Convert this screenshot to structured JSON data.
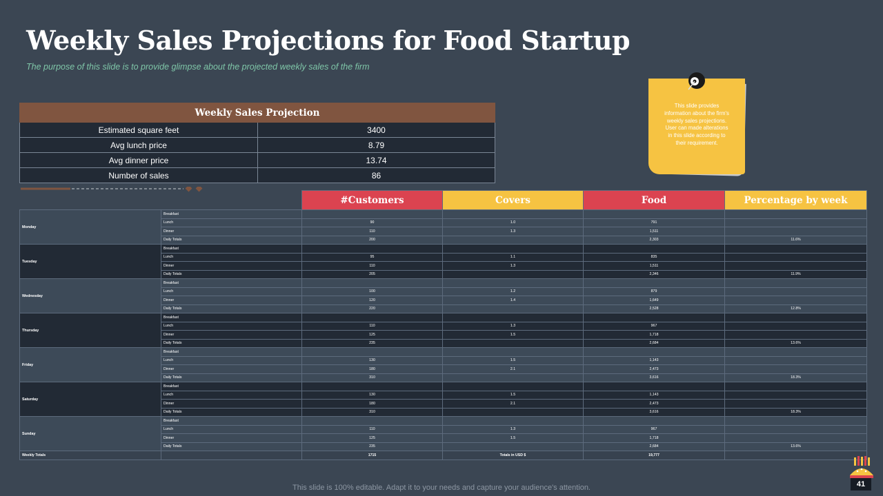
{
  "slide": {
    "title": "Weekly Sales Projections for Food Startup",
    "subtitle": "The purpose  of  this slide is to provide  glimpse  about  the projected  weekly  sales of the firm",
    "footer": "This slide is 100% editable. Adapt it to your needs and capture your audience's attention.",
    "page_number": "41"
  },
  "projection": {
    "header": "Weekly Sales Projection",
    "rows": [
      {
        "label": "Estimated square feet",
        "value": "3400"
      },
      {
        "label": "Avg  lunch price",
        "value": "8.79"
      },
      {
        "label": "Avg  dinner price",
        "value": "13.74"
      },
      {
        "label": "Number of sales",
        "value": "86"
      }
    ]
  },
  "note": {
    "text": "This slide provides information about the firm's weekly sales projections. User can made alterations in this slide according to their requirement."
  },
  "main": {
    "headers": [
      "#Customers",
      "Covers",
      "Food",
      "Percentage by week"
    ],
    "days": [
      {
        "day": "Monday",
        "rows": [
          {
            "label": "Breakfast",
            "customers": "",
            "covers": "",
            "food": "",
            "pct": ""
          },
          {
            "label": "Lunch",
            "customers": "90",
            "covers": "1.0",
            "food": "791",
            "pct": ""
          },
          {
            "label": "Dinner",
            "customers": "110",
            "covers": "1.3",
            "food": "1,511",
            "pct": ""
          },
          {
            "label": "Daily Totals",
            "customers": "200",
            "covers": "",
            "food": "2,303",
            "pct": "11.6%"
          }
        ]
      },
      {
        "day": "Tuesday",
        "rows": [
          {
            "label": "Breakfast",
            "customers": "",
            "covers": "",
            "food": "",
            "pct": ""
          },
          {
            "label": "Lunch",
            "customers": "95",
            "covers": "1.1",
            "food": "835",
            "pct": ""
          },
          {
            "label": "Dinner",
            "customers": "110",
            "covers": "1.3",
            "food": "1,511",
            "pct": ""
          },
          {
            "label": "Daily Totals",
            "customers": "205",
            "covers": "",
            "food": "2,346",
            "pct": "11.9%"
          }
        ]
      },
      {
        "day": "Wednesday",
        "rows": [
          {
            "label": "Breakfast",
            "customers": "",
            "covers": "",
            "food": "",
            "pct": ""
          },
          {
            "label": "Lunch",
            "customers": "100",
            "covers": "1.2",
            "food": "879",
            "pct": ""
          },
          {
            "label": "Dinner",
            "customers": "120",
            "covers": "1.4",
            "food": "1,649",
            "pct": ""
          },
          {
            "label": "Daily Totals",
            "customers": "220",
            "covers": "",
            "food": "2,528",
            "pct": "12.8%"
          }
        ]
      },
      {
        "day": "Thursday",
        "rows": [
          {
            "label": "Breakfast",
            "customers": "",
            "covers": "",
            "food": "",
            "pct": ""
          },
          {
            "label": "Lunch",
            "customers": "110",
            "covers": "1.3",
            "food": "967",
            "pct": ""
          },
          {
            "label": "Dinner",
            "customers": "125",
            "covers": "1.5",
            "food": "1,718",
            "pct": ""
          },
          {
            "label": "Daily Totals",
            "customers": "235",
            "covers": "",
            "food": "2,684",
            "pct": "13.6%"
          }
        ]
      },
      {
        "day": "Friday",
        "rows": [
          {
            "label": "Breakfast",
            "customers": "",
            "covers": "",
            "food": "",
            "pct": ""
          },
          {
            "label": "Lunch",
            "customers": "130",
            "covers": "1.5",
            "food": "1,143",
            "pct": ""
          },
          {
            "label": "Dinner",
            "customers": "180",
            "covers": "2.1",
            "food": "2,473",
            "pct": ""
          },
          {
            "label": "Daily Totals",
            "customers": "310",
            "covers": "",
            "food": "3,616",
            "pct": "18.3%"
          }
        ]
      },
      {
        "day": "Saturday",
        "rows": [
          {
            "label": "Breakfast",
            "customers": "",
            "covers": "",
            "food": "",
            "pct": ""
          },
          {
            "label": "Lunch",
            "customers": "130",
            "covers": "1.5",
            "food": "1,143",
            "pct": ""
          },
          {
            "label": "Dinner",
            "customers": "180",
            "covers": "2.1",
            "food": "2,473",
            "pct": ""
          },
          {
            "label": "Daily Totals",
            "customers": "310",
            "covers": "",
            "food": "3,616",
            "pct": "18.3%"
          }
        ]
      },
      {
        "day": "Sunday",
        "rows": [
          {
            "label": "Breakfast",
            "customers": "",
            "covers": "",
            "food": "",
            "pct": ""
          },
          {
            "label": "Lunch",
            "customers": "110",
            "covers": "1.3",
            "food": "967",
            "pct": ""
          },
          {
            "label": "Dinner",
            "customers": "125",
            "covers": "1.5",
            "food": "1,718",
            "pct": ""
          },
          {
            "label": "Daily Totals",
            "customers": "235",
            "covers": "",
            "food": "2,684",
            "pct": "13.6%"
          }
        ]
      }
    ],
    "weekly": {
      "label": "Weekly Totals",
      "customers": "1715",
      "covers": "Totals in USD $",
      "food": "19,777",
      "pct": ""
    }
  }
}
